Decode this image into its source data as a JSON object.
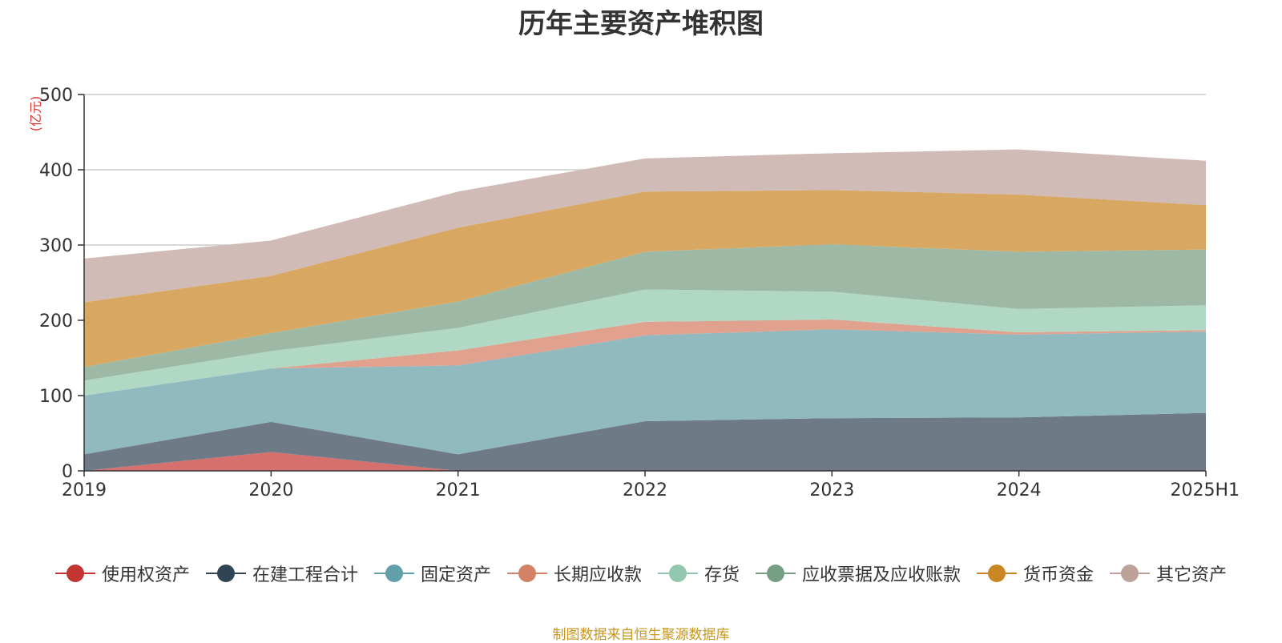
{
  "chart_data": {
    "type": "area",
    "title": "历年主要资产堆积图",
    "unit_label": "(亿元)",
    "categories": [
      "2019",
      "2020",
      "2021",
      "2022",
      "2023",
      "2024",
      "2025H1"
    ],
    "ylim": [
      0,
      500
    ],
    "yticks": [
      "0",
      "100",
      "200",
      "300",
      "400",
      "500"
    ],
    "stacked": true,
    "grid": true,
    "legend_position": "bottom",
    "series": [
      {
        "name": "使用权资产",
        "color": "#d6706e",
        "legend_color": "#c23531",
        "values": [
          0,
          25,
          0,
          0,
          0,
          0,
          0
        ]
      },
      {
        "name": "在建工程合计",
        "color": "#6e7b87",
        "legend_color": "#2f4554",
        "values": [
          22,
          40,
          22,
          66,
          70,
          71,
          77
        ]
      },
      {
        "name": "固定资产",
        "color": "#90b9c0",
        "legend_color": "#61a0a8",
        "values": [
          78,
          71,
          118,
          114,
          118,
          110,
          108
        ]
      },
      {
        "name": "长期应收款",
        "color": "#e0a18e",
        "legend_color": "#d48265",
        "values": [
          0,
          0,
          20,
          18,
          13,
          3,
          2
        ]
      },
      {
        "name": "存货",
        "color": "#b1d8c4",
        "legend_color": "#91c7ae",
        "values": [
          20,
          23,
          30,
          43,
          37,
          31,
          33
        ]
      },
      {
        "name": "应收票据及应收账款",
        "color": "#9db9a5",
        "legend_color": "#749f83",
        "values": [
          18,
          24,
          35,
          50,
          63,
          76,
          74
        ]
      },
      {
        "name": "货币资金",
        "color": "#d8a862",
        "legend_color": "#ca8622",
        "values": [
          86,
          76,
          98,
          80,
          72,
          76,
          59
        ]
      },
      {
        "name": "其它资产",
        "color": "#d0bbb6",
        "legend_color": "#bda29a",
        "values": [
          58,
          47,
          48,
          44,
          49,
          60,
          59
        ]
      }
    ]
  },
  "source": "制图数据来自恒生聚源数据库"
}
